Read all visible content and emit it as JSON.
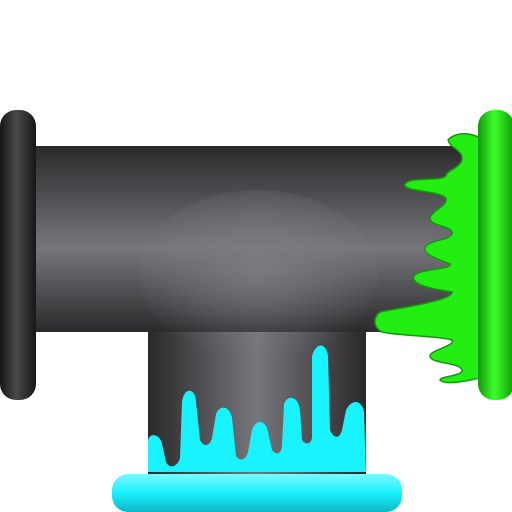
{
  "scene": {
    "background": "#ffffff",
    "pipe_colors": {
      "body_mid": "#76767c",
      "body_dark": "#2a2a2c",
      "flange_light": "#4a4a4c",
      "flange_dark": "#161616"
    },
    "fluids": {
      "green": {
        "main": "#22ee11",
        "dark": "#0f9a08",
        "light": "#3dff2a"
      },
      "cyan": {
        "main": "#19f2ff",
        "dark": "#0fb6c4",
        "light": "#7af8ff"
      }
    },
    "icons": [
      "pipe-tee-icon",
      "green-slime-icon",
      "cyan-slime-icon"
    ]
  }
}
